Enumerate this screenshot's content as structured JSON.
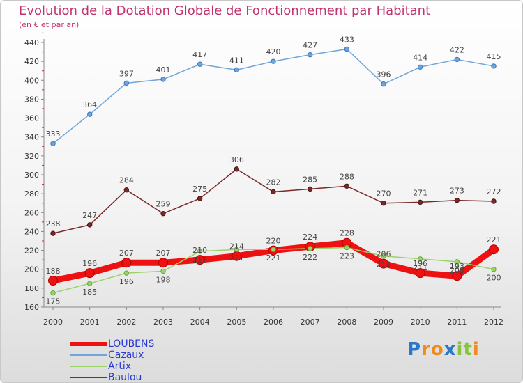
{
  "chart_data": {
    "type": "line",
    "title": "Evolution de la Dotation Globale de Fonctionnement par Habitant",
    "subtitle": "(en € et par an)",
    "xlabel": "",
    "ylabel": "",
    "x": [
      "2000",
      "2001",
      "2002",
      "2003",
      "2004",
      "2005",
      "2006",
      "2007",
      "2008",
      "2009",
      "2010",
      "2011",
      "2012"
    ],
    "ylim": [
      160,
      440
    ],
    "yticks": [
      160,
      180,
      200,
      220,
      240,
      260,
      280,
      300,
      320,
      340,
      360,
      380,
      400,
      420,
      440
    ],
    "grid": false,
    "legend_position": "bottom-left",
    "series": [
      {
        "name": "LOUBENS",
        "color": "#ee1111",
        "values": [
          188,
          196,
          207,
          207,
          210,
          214,
          220,
          224,
          228,
          206,
          196,
          193,
          221
        ],
        "show_labels": [
          188,
          196,
          207,
          207,
          210,
          214,
          220,
          224,
          228,
          206,
          196,
          193,
          221
        ]
      },
      {
        "name": "Cazaux",
        "color": "#6fa5da",
        "values": [
          333,
          364,
          397,
          401,
          417,
          411,
          420,
          427,
          433,
          396,
          414,
          422,
          415
        ],
        "show_labels": [
          333,
          364,
          397,
          401,
          417,
          411,
          420,
          427,
          433,
          396,
          414,
          422,
          415
        ]
      },
      {
        "name": "Artix",
        "color": "#99d36a",
        "values": [
          175,
          185,
          196,
          198,
          219,
          221,
          221,
          222,
          223,
          214,
          211,
          208,
          200
        ],
        "show_labels": [
          175,
          185,
          196,
          198,
          219,
          221,
          221,
          222,
          223,
          214,
          211,
          208,
          200
        ]
      },
      {
        "name": "Baulou",
        "color": "#7a2a2a",
        "values": [
          238,
          247,
          284,
          259,
          275,
          306,
          282,
          285,
          288,
          270,
          271,
          273,
          272
        ],
        "show_labels": [
          238,
          247,
          284,
          259,
          275,
          306,
          282,
          285,
          288,
          270,
          271,
          273,
          272
        ]
      }
    ]
  },
  "logo": {
    "text": "Proxiti",
    "letters": [
      "P",
      "r",
      "o",
      "x",
      "i",
      "t",
      "i"
    ],
    "colors": [
      "#2a78c8",
      "#f08a1c",
      "#f08a1c",
      "#2a78c8",
      "#86c43d",
      "#86c43d",
      "#f08a1c"
    ]
  }
}
